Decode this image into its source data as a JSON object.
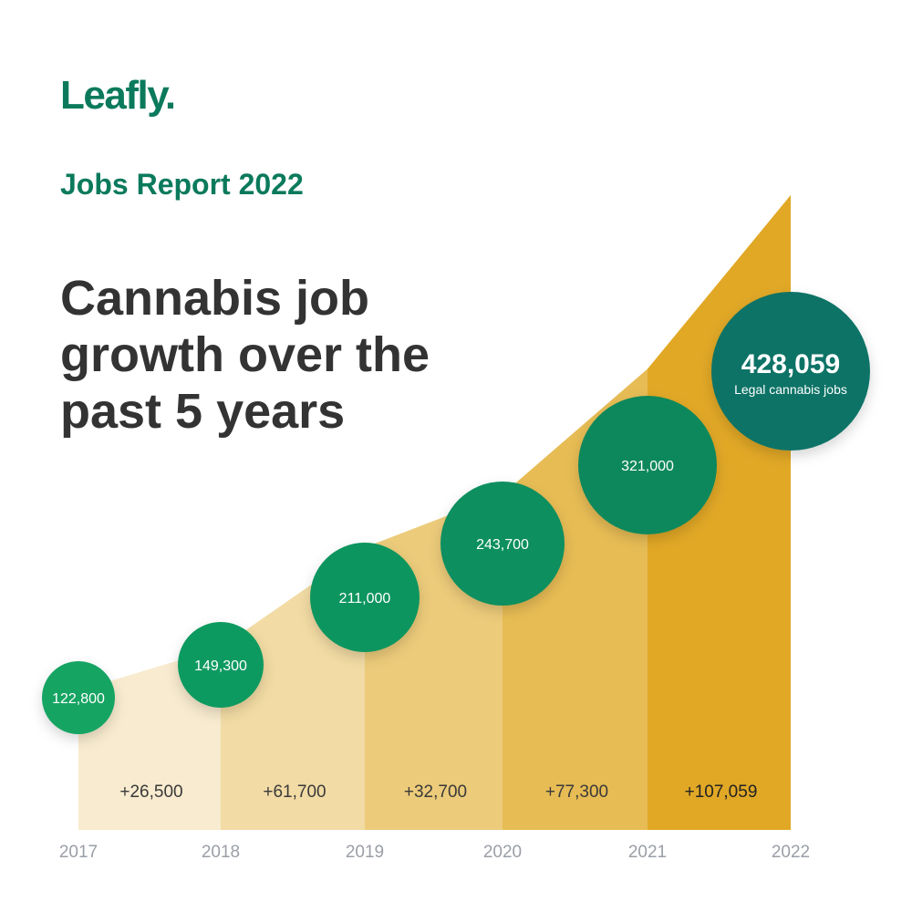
{
  "brand": {
    "logo_text": "Leafly."
  },
  "header": {
    "subtitle": "Jobs Report 2022",
    "title": "Cannabis job growth over the past 5 years"
  },
  "colors": {
    "brand_green": "#0b7a5c",
    "title_text": "#333333",
    "bubble_colors": [
      "#12a463",
      "#0f9a61",
      "#0e955f",
      "#0d8f5e",
      "#0c885c",
      "#0b7366"
    ],
    "segment_colors": [
      "#f8ebcf",
      "#f2dba4",
      "#eccb7a",
      "#e7bc55",
      "#e1a826"
    ],
    "axis_text": "#9a9ea6"
  },
  "chart_data": {
    "type": "area",
    "title": "",
    "xlabel": "",
    "ylabel": "",
    "x": [
      "2017",
      "2018",
      "2019",
      "2020",
      "2021",
      "2022"
    ],
    "values": [
      122800,
      149300,
      211000,
      243700,
      321000,
      428059
    ],
    "value_labels": [
      "122,800",
      "149,300",
      "211,000",
      "243,700",
      "321,000",
      "428,059"
    ],
    "highlight_caption": "Legal cannabis jobs",
    "increments": [
      "+26,500",
      "+61,700",
      "+32,700",
      "+77,300",
      "+107,059"
    ],
    "grid": false,
    "legend": "none"
  }
}
